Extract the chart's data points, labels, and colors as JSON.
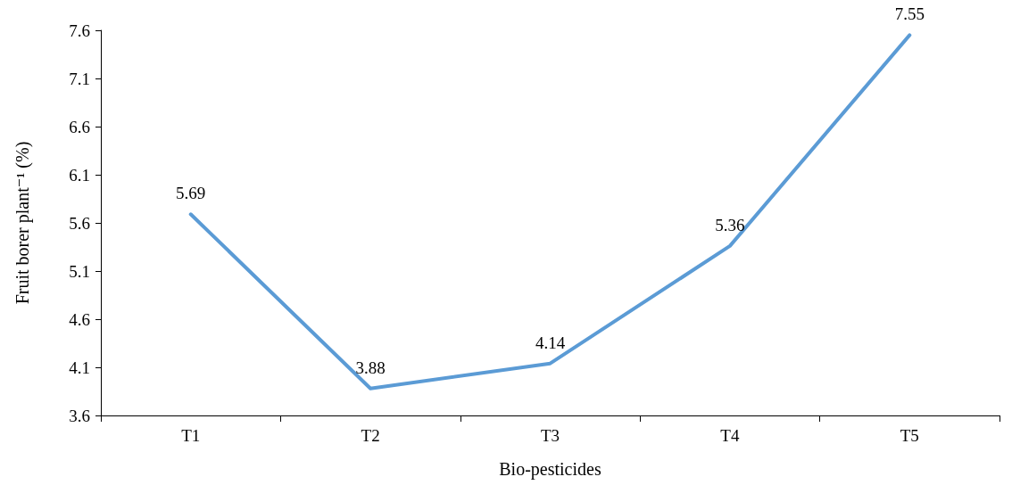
{
  "chart_data": {
    "type": "line",
    "xlabel": "Bio-pesticides",
    "ylabel": "Fruit borer plant⁻¹ (%)",
    "categories": [
      "T1",
      "T2",
      "T3",
      "T4",
      "T5"
    ],
    "series": [
      {
        "color": "#5b9bd5",
        "values": [
          5.69,
          3.88,
          4.14,
          5.36,
          7.55
        ]
      }
    ],
    "ylim": [
      3.6,
      7.6
    ],
    "yticks": [
      3.6,
      4.1,
      4.6,
      5.1,
      5.6,
      6.1,
      6.6,
      7.1,
      7.6
    ],
    "grid": false,
    "marker": "none",
    "line_style": "solid",
    "data_labels": true
  }
}
